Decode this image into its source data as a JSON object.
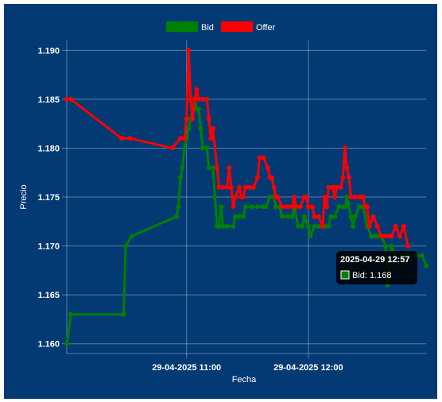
{
  "chart_data": {
    "type": "line",
    "xlabel": "Fecha",
    "ylabel": "Precio",
    "ylim": [
      1.159,
      1.191
    ],
    "yticks": [
      "1.160",
      "1.165",
      "1.170",
      "1.175",
      "1.180",
      "1.185",
      "1.190"
    ],
    "xticks": [
      {
        "label": "29-04-2025 11:00",
        "t": "10:59"
      },
      {
        "label": "29-04-2025 12:00",
        "t": "11:59"
      }
    ],
    "xrange": [
      "10:00",
      "12:57"
    ],
    "grid": true,
    "legend_position": "top",
    "background": "#033a74",
    "series": [
      {
        "name": "Bid",
        "color": "#008000",
        "points": [
          [
            "10:00",
            1.16
          ],
          [
            "10:02",
            1.163
          ],
          [
            "10:28",
            1.163
          ],
          [
            "10:29",
            1.17
          ],
          [
            "10:32",
            1.171
          ],
          [
            "10:54",
            1.173
          ],
          [
            "10:55",
            1.174
          ],
          [
            "10:56",
            1.177
          ],
          [
            "10:57",
            1.178
          ],
          [
            "10:58",
            1.18
          ],
          [
            "10:59",
            1.181
          ],
          [
            "11:00",
            1.182
          ],
          [
            "11:01",
            1.183
          ],
          [
            "11:02",
            1.184
          ],
          [
            "11:03",
            1.185
          ],
          [
            "11:04",
            1.184
          ],
          [
            "11:05",
            1.184
          ],
          [
            "11:06",
            1.182
          ],
          [
            "11:07",
            1.18
          ],
          [
            "11:09",
            1.18
          ],
          [
            "11:10",
            1.178
          ],
          [
            "11:12",
            1.178
          ],
          [
            "11:13",
            1.175
          ],
          [
            "11:14",
            1.172
          ],
          [
            "11:15",
            1.172
          ],
          [
            "11:16",
            1.174
          ],
          [
            "11:17",
            1.172
          ],
          [
            "11:19",
            1.172
          ],
          [
            "11:22",
            1.172
          ],
          [
            "11:23",
            1.173
          ],
          [
            "11:25",
            1.173
          ],
          [
            "11:27",
            1.173
          ],
          [
            "11:28",
            1.174
          ],
          [
            "11:31",
            1.174
          ],
          [
            "11:34",
            1.174
          ],
          [
            "11:37",
            1.174
          ],
          [
            "11:38",
            1.174
          ],
          [
            "11:40",
            1.175
          ],
          [
            "11:42",
            1.175
          ],
          [
            "11:43",
            1.174
          ],
          [
            "11:45",
            1.174
          ],
          [
            "11:46",
            1.173
          ],
          [
            "11:49",
            1.173
          ],
          [
            "11:51",
            1.173
          ],
          [
            "11:52",
            1.174
          ],
          [
            "11:54",
            1.172
          ],
          [
            "11:56",
            1.172
          ],
          [
            "11:57",
            1.173
          ],
          [
            "11:59",
            1.172
          ],
          [
            "12:00",
            1.171
          ],
          [
            "12:02",
            1.172
          ],
          [
            "12:04",
            1.172
          ],
          [
            "12:06",
            1.172
          ],
          [
            "12:07",
            1.172
          ],
          [
            "12:09",
            1.172
          ],
          [
            "12:10",
            1.173
          ],
          [
            "12:12",
            1.173
          ],
          [
            "12:14",
            1.174
          ],
          [
            "12:16",
            1.174
          ],
          [
            "12:17",
            1.174
          ],
          [
            "12:18",
            1.175
          ],
          [
            "12:20",
            1.173
          ],
          [
            "12:21",
            1.172
          ],
          [
            "12:22",
            1.173
          ],
          [
            "12:24",
            1.174
          ],
          [
            "12:25",
            1.174
          ],
          [
            "12:26",
            1.174
          ],
          [
            "12:28",
            1.172
          ],
          [
            "12:30",
            1.171
          ],
          [
            "12:32",
            1.171
          ],
          [
            "12:33",
            1.171
          ],
          [
            "12:35",
            1.171
          ],
          [
            "12:37",
            1.17
          ],
          [
            "12:38",
            1.166
          ],
          [
            "12:40",
            1.17
          ],
          [
            "12:42",
            1.169
          ],
          [
            "12:44",
            1.168
          ],
          [
            "12:46",
            1.169
          ],
          [
            "12:48",
            1.169
          ],
          [
            "12:52",
            1.169
          ],
          [
            "12:55",
            1.169
          ],
          [
            "12:57",
            1.168
          ]
        ]
      },
      {
        "name": "Offer",
        "color": "#ff0000",
        "points": [
          [
            "10:00",
            1.185
          ],
          [
            "10:02",
            1.185
          ],
          [
            "10:27",
            1.181
          ],
          [
            "10:31",
            1.181
          ],
          [
            "10:52",
            1.18
          ],
          [
            "10:56",
            1.181
          ],
          [
            "10:58",
            1.181
          ],
          [
            "10:59",
            1.183
          ],
          [
            "11:00",
            1.19
          ],
          [
            "11:01",
            1.185
          ],
          [
            "11:02",
            1.183
          ],
          [
            "11:03",
            1.185
          ],
          [
            "11:04",
            1.186
          ],
          [
            "11:05",
            1.185
          ],
          [
            "11:07",
            1.185
          ],
          [
            "11:09",
            1.185
          ],
          [
            "11:10",
            1.183
          ],
          [
            "11:11",
            1.181
          ],
          [
            "11:12",
            1.182
          ],
          [
            "11:14",
            1.178
          ],
          [
            "11:15",
            1.176
          ],
          [
            "11:17",
            1.176
          ],
          [
            "11:19",
            1.176
          ],
          [
            "11:20",
            1.178
          ],
          [
            "11:21",
            1.176
          ],
          [
            "11:22",
            1.174
          ],
          [
            "11:23",
            1.175
          ],
          [
            "11:25",
            1.176
          ],
          [
            "11:26",
            1.175
          ],
          [
            "11:27",
            1.175
          ],
          [
            "11:28",
            1.176
          ],
          [
            "11:30",
            1.176
          ],
          [
            "11:32",
            1.176
          ],
          [
            "11:34",
            1.177
          ],
          [
            "11:35",
            1.179
          ],
          [
            "11:37",
            1.179
          ],
          [
            "11:39",
            1.178
          ],
          [
            "11:40",
            1.177
          ],
          [
            "11:41",
            1.177
          ],
          [
            "11:42",
            1.176
          ],
          [
            "11:43",
            1.175
          ],
          [
            "11:44",
            1.175
          ],
          [
            "11:46",
            1.174
          ],
          [
            "11:48",
            1.174
          ],
          [
            "11:49",
            1.174
          ],
          [
            "11:51",
            1.174
          ],
          [
            "11:52",
            1.175
          ],
          [
            "11:53",
            1.174
          ],
          [
            "11:55",
            1.174
          ],
          [
            "11:57",
            1.175
          ],
          [
            "11:58",
            1.175
          ],
          [
            "11:59",
            1.174
          ],
          [
            "12:01",
            1.174
          ],
          [
            "12:02",
            1.173
          ],
          [
            "12:04",
            1.173
          ],
          [
            "12:06",
            1.172
          ],
          [
            "12:07",
            1.175
          ],
          [
            "12:08",
            1.174
          ],
          [
            "12:09",
            1.176
          ],
          [
            "12:11",
            1.176
          ],
          [
            "12:12",
            1.175
          ],
          [
            "12:13",
            1.176
          ],
          [
            "12:15",
            1.176
          ],
          [
            "12:16",
            1.177
          ],
          [
            "12:17",
            1.18
          ],
          [
            "12:18",
            1.178
          ],
          [
            "12:19",
            1.177
          ],
          [
            "12:20",
            1.175
          ],
          [
            "12:22",
            1.175
          ],
          [
            "12:24",
            1.175
          ],
          [
            "12:25",
            1.175
          ],
          [
            "12:26",
            1.175
          ],
          [
            "12:27",
            1.174
          ],
          [
            "12:28",
            1.174
          ],
          [
            "12:29",
            1.172
          ],
          [
            "12:31",
            1.173
          ],
          [
            "12:33",
            1.172
          ],
          [
            "12:35",
            1.171
          ],
          [
            "12:37",
            1.171
          ],
          [
            "12:39",
            1.171
          ],
          [
            "12:40",
            1.171
          ],
          [
            "12:42",
            1.172
          ],
          [
            "12:44",
            1.171
          ],
          [
            "12:46",
            1.172
          ],
          [
            "12:48",
            1.17
          ]
        ]
      }
    ],
    "tooltip": {
      "title": "2025-04-29 12:57",
      "series": "Bid",
      "label": "Bid: 1.168",
      "value": 1.168,
      "at": "12:57"
    }
  }
}
